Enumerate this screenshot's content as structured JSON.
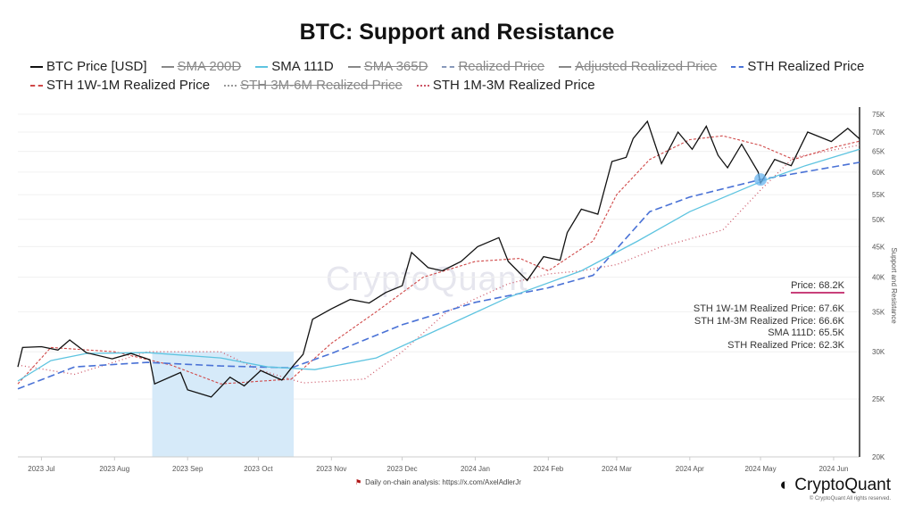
{
  "chart_data": {
    "type": "line",
    "title": "BTC: Support and Resistance",
    "ylabel": "Support and Resistance",
    "yscale": "log",
    "ylim": [
      20000,
      75000
    ],
    "y_ticks": [
      "20K",
      "25K",
      "30K",
      "35K",
      "40K",
      "45K",
      "50K",
      "55K",
      "60K",
      "65K",
      "70K",
      "75K"
    ],
    "y_tick_values": [
      20000,
      25000,
      30000,
      35000,
      40000,
      45000,
      50000,
      55000,
      60000,
      65000,
      70000,
      75000
    ],
    "xlim": [
      "2023-06-21",
      "2024-06-12"
    ],
    "x_ticks": [
      "2023 Jul",
      "2023 Aug",
      "2023 Sep",
      "2023 Oct",
      "2023 Nov",
      "2023 Dec",
      "2024 Jan",
      "2024 Feb",
      "2024 Mar",
      "2024 Apr",
      "2024 May",
      "2024 Jun"
    ],
    "x_tick_dates": [
      "2023-07-01",
      "2023-08-01",
      "2023-09-01",
      "2023-10-01",
      "2023-11-01",
      "2023-12-01",
      "2024-01-01",
      "2024-02-01",
      "2024-03-01",
      "2024-04-01",
      "2024-05-01",
      "2024-06-01"
    ],
    "grid": true,
    "legend_position": "top",
    "highlight_range": {
      "start": "2023-08-17",
      "end": "2023-10-16",
      "color": "#d6eaf9"
    },
    "highlight_point": {
      "date": "2024-05-01",
      "value": 58300,
      "color": "#6ab4ee"
    },
    "legend": [
      {
        "name": "BTC Price [USD]",
        "color": "#111111",
        "style": "solid",
        "hidden": false
      },
      {
        "name": "SMA 200D",
        "color": "#888888",
        "style": "solid",
        "hidden": true
      },
      {
        "name": "SMA 111D",
        "color": "#5ec4e0",
        "style": "solid",
        "hidden": false
      },
      {
        "name": "SMA 365D",
        "color": "#888888",
        "style": "solid",
        "hidden": true
      },
      {
        "name": "Realized Price",
        "color": "#8899bb",
        "style": "dashdot",
        "hidden": true
      },
      {
        "name": "Adjusted Realized Price",
        "color": "#888888",
        "style": "solid",
        "hidden": true
      },
      {
        "name": "STH Realized Price",
        "color": "#4a72d6",
        "style": "dashed",
        "hidden": false
      },
      {
        "name": "STH 1W-1M Realized Price",
        "color": "#d04848",
        "style": "dashed",
        "hidden": false
      },
      {
        "name": "STH 3M-6M Realized Price",
        "color": "#999999",
        "style": "dotted",
        "hidden": true
      },
      {
        "name": "STH 1M-3M Realized Price",
        "color": "#cc5566",
        "style": "dotted",
        "hidden": false
      }
    ],
    "series": [
      {
        "name": "BTC Price [USD]",
        "color": "#111111",
        "dash": "",
        "width": 1.3,
        "points": [
          [
            "2023-06-21",
            28300
          ],
          [
            "2023-06-23",
            30500
          ],
          [
            "2023-07-01",
            30600
          ],
          [
            "2023-07-08",
            30200
          ],
          [
            "2023-07-13",
            31400
          ],
          [
            "2023-07-20",
            29900
          ],
          [
            "2023-07-31",
            29200
          ],
          [
            "2023-08-08",
            29800
          ],
          [
            "2023-08-16",
            29100
          ],
          [
            "2023-08-18",
            26500
          ],
          [
            "2023-08-29",
            27700
          ],
          [
            "2023-09-01",
            25900
          ],
          [
            "2023-09-11",
            25200
          ],
          [
            "2023-09-19",
            27200
          ],
          [
            "2023-09-25",
            26300
          ],
          [
            "2023-10-02",
            27900
          ],
          [
            "2023-10-11",
            26900
          ],
          [
            "2023-10-16",
            28500
          ],
          [
            "2023-10-20",
            29700
          ],
          [
            "2023-10-24",
            34000
          ],
          [
            "2023-11-01",
            35400
          ],
          [
            "2023-11-09",
            36700
          ],
          [
            "2023-11-17",
            36200
          ],
          [
            "2023-11-24",
            37700
          ],
          [
            "2023-12-01",
            38700
          ],
          [
            "2023-12-05",
            44000
          ],
          [
            "2023-12-12",
            41500
          ],
          [
            "2023-12-18",
            41000
          ],
          [
            "2023-12-26",
            42500
          ],
          [
            "2024-01-02",
            45000
          ],
          [
            "2024-01-11",
            46600
          ],
          [
            "2024-01-15",
            42500
          ],
          [
            "2024-01-23",
            39500
          ],
          [
            "2024-01-30",
            43300
          ],
          [
            "2024-02-06",
            42700
          ],
          [
            "2024-02-09",
            47500
          ],
          [
            "2024-02-15",
            52000
          ],
          [
            "2024-02-22",
            51000
          ],
          [
            "2024-02-28",
            62500
          ],
          [
            "2024-03-05",
            63500
          ],
          [
            "2024-03-08",
            68300
          ],
          [
            "2024-03-14",
            73000
          ],
          [
            "2024-03-20",
            62000
          ],
          [
            "2024-03-27",
            70000
          ],
          [
            "2024-04-02",
            65500
          ],
          [
            "2024-04-08",
            71600
          ],
          [
            "2024-04-13",
            64000
          ],
          [
            "2024-04-17",
            61000
          ],
          [
            "2024-04-23",
            66800
          ],
          [
            "2024-04-30",
            60000
          ],
          [
            "2024-05-01",
            57500
          ],
          [
            "2024-05-07",
            63000
          ],
          [
            "2024-05-14",
            61500
          ],
          [
            "2024-05-21",
            70000
          ],
          [
            "2024-05-31",
            67500
          ],
          [
            "2024-06-07",
            71000
          ],
          [
            "2024-06-12",
            68200
          ]
        ]
      },
      {
        "name": "SMA 111D",
        "color": "#5ec4e0",
        "dash": "",
        "width": 1.3,
        "points": [
          [
            "2023-06-21",
            26800
          ],
          [
            "2023-07-05",
            29000
          ],
          [
            "2023-07-20",
            29800
          ],
          [
            "2023-08-15",
            29900
          ],
          [
            "2023-09-15",
            29300
          ],
          [
            "2023-10-05",
            28300
          ],
          [
            "2023-10-25",
            28000
          ],
          [
            "2023-11-20",
            29300
          ],
          [
            "2023-12-15",
            32500
          ],
          [
            "2024-01-15",
            37000
          ],
          [
            "2024-02-15",
            41000
          ],
          [
            "2024-03-10",
            46000
          ],
          [
            "2024-04-01",
            51500
          ],
          [
            "2024-05-01",
            57800
          ],
          [
            "2024-05-20",
            61500
          ],
          [
            "2024-06-12",
            65500
          ]
        ]
      },
      {
        "name": "STH Realized Price",
        "color": "#4a72d6",
        "dash": "8,4",
        "width": 1.6,
        "points": [
          [
            "2023-06-21",
            26000
          ],
          [
            "2023-07-15",
            28300
          ],
          [
            "2023-08-15",
            28800
          ],
          [
            "2023-09-15",
            28400
          ],
          [
            "2023-10-15",
            28200
          ],
          [
            "2023-11-01",
            29800
          ],
          [
            "2023-12-01",
            33300
          ],
          [
            "2024-01-01",
            36300
          ],
          [
            "2024-02-01",
            38400
          ],
          [
            "2024-02-20",
            40300
          ],
          [
            "2024-03-15",
            51500
          ],
          [
            "2024-04-01",
            54500
          ],
          [
            "2024-05-01",
            58300
          ],
          [
            "2024-06-12",
            62300
          ]
        ]
      },
      {
        "name": "STH 1W-1M Realized Price",
        "color": "#d04848",
        "dash": "3,2",
        "width": 1.1,
        "points": [
          [
            "2023-06-21",
            26500
          ],
          [
            "2023-07-05",
            30500
          ],
          [
            "2023-08-01",
            30000
          ],
          [
            "2023-08-25",
            28500
          ],
          [
            "2023-09-15",
            26500
          ],
          [
            "2023-10-15",
            27000
          ],
          [
            "2023-11-01",
            31000
          ],
          [
            "2023-11-20",
            35000
          ],
          [
            "2023-12-10",
            40000
          ],
          [
            "2024-01-01",
            42500
          ],
          [
            "2024-01-20",
            43000
          ],
          [
            "2024-02-01",
            41000
          ],
          [
            "2024-02-20",
            46000
          ],
          [
            "2024-03-01",
            55000
          ],
          [
            "2024-03-15",
            63000
          ],
          [
            "2024-04-01",
            68000
          ],
          [
            "2024-04-15",
            69000
          ],
          [
            "2024-05-01",
            66500
          ],
          [
            "2024-05-15",
            63000
          ],
          [
            "2024-06-01",
            66000
          ],
          [
            "2024-06-12",
            67600
          ]
        ]
      },
      {
        "name": "STH 1M-3M Realized Price",
        "color": "#cc5566",
        "dash": "1,3",
        "width": 1.3,
        "points": [
          [
            "2023-06-21",
            28500
          ],
          [
            "2023-07-15",
            27500
          ],
          [
            "2023-08-15",
            30000
          ],
          [
            "2023-09-15",
            30000
          ],
          [
            "2023-10-01",
            28000
          ],
          [
            "2023-10-20",
            26600
          ],
          [
            "2023-11-15",
            27000
          ],
          [
            "2023-12-01",
            30000
          ],
          [
            "2023-12-20",
            35000
          ],
          [
            "2024-01-15",
            39000
          ],
          [
            "2024-02-01",
            40500
          ],
          [
            "2024-02-15",
            41000
          ],
          [
            "2024-03-01",
            42000
          ],
          [
            "2024-03-20",
            45000
          ],
          [
            "2024-04-15",
            48000
          ],
          [
            "2024-05-01",
            56000
          ],
          [
            "2024-05-15",
            63500
          ],
          [
            "2024-06-12",
            66600
          ]
        ]
      }
    ],
    "annotations": {
      "price": "Price: 68.2K",
      "values": [
        "STH 1W-1M Realized Price: 67.6K",
        "STH 1M-3M Realized Price: 66.6K",
        "SMA 111D: 65.5K",
        "STH Realized Price: 62.3K"
      ]
    }
  },
  "footer": {
    "note": "Daily on-chain analysis: https://x.com/AxelAdlerJr",
    "brand": "CryptoQuant",
    "copyright": "© CryptoQuant All rights reserved.",
    "watermark": "CryptoQuant"
  }
}
